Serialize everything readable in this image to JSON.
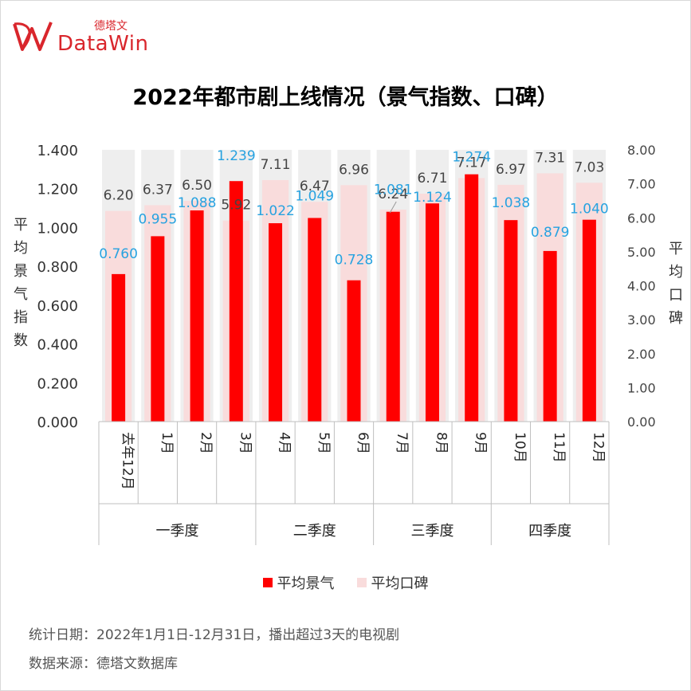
{
  "logo": {
    "brand": "DataWin",
    "cn": "德塔文"
  },
  "title": "2022年都市剧上线情况（景气指数、口碑）",
  "left_axis_title": "平均景气指数",
  "right_axis_title": "平均口碑",
  "colors": {
    "bar": "#ff0000",
    "ghost": "#f9dcdc",
    "band": "#eeeeee",
    "label_blue": "#27a2e0"
  },
  "chart_data": {
    "type": "bar",
    "categories": [
      "去年12月",
      "1月",
      "2月",
      "3月",
      "4月",
      "5月",
      "6月",
      "7月",
      "8月",
      "9月",
      "10月",
      "11月",
      "12月"
    ],
    "groups": [
      {
        "label": "一季度",
        "categories": [
          "去年12月",
          "1月",
          "2月",
          "3月"
        ]
      },
      {
        "label": "二季度",
        "categories": [
          "4月",
          "5月",
          "6月"
        ]
      },
      {
        "label": "三季度",
        "categories": [
          "7月",
          "8月",
          "9月"
        ]
      },
      {
        "label": "四季度",
        "categories": [
          "10月",
          "11月",
          "12月"
        ]
      }
    ],
    "series": [
      {
        "name": "平均景气",
        "axis": "left",
        "values": [
          0.76,
          0.955,
          1.088,
          1.239,
          1.022,
          1.049,
          0.728,
          1.081,
          1.124,
          1.274,
          1.038,
          0.879,
          1.04
        ],
        "labels": [
          "0.760",
          "0.955",
          "1.088",
          "1.239",
          "1.022",
          "1.049",
          "0.728",
          "1.081",
          "1.124",
          "1.274",
          "1.038",
          "0.879",
          "1.040"
        ]
      },
      {
        "name": "平均口碑",
        "axis": "right",
        "values": [
          6.2,
          6.37,
          6.5,
          5.92,
          7.11,
          6.47,
          6.96,
          6.24,
          6.71,
          7.17,
          6.97,
          7.31,
          7.03
        ],
        "labels": [
          "6.20",
          "6.37",
          "6.50",
          "5.92",
          "7.11",
          "6.47",
          "6.96",
          "6.24",
          "6.71",
          "7.17",
          "6.97",
          "7.31",
          "7.03"
        ]
      }
    ],
    "left_axis": {
      "min": 0,
      "max": 1.4,
      "ticks": [
        "0.000",
        "0.200",
        "0.400",
        "0.600",
        "0.800",
        "1.000",
        "1.200",
        "1.400"
      ]
    },
    "right_axis": {
      "min": 0,
      "max": 8,
      "ticks": [
        "0.00",
        "1.00",
        "2.00",
        "3.00",
        "4.00",
        "5.00",
        "6.00",
        "7.00",
        "8.00"
      ]
    },
    "legend_position": "bottom"
  },
  "notes": {
    "stat_date": "统计日期：2022年1月1日-12月31日，播出超过3天的电视剧",
    "source": "数据来源：德塔文数据库"
  }
}
